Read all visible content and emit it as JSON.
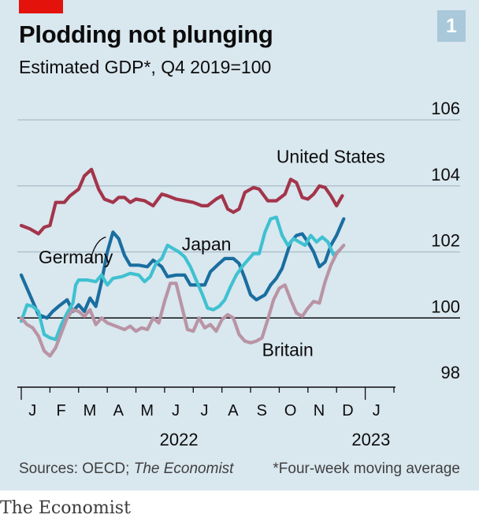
{
  "header": {
    "title": "Plodding not plunging",
    "subtitle": "Estimated GDP*, Q4 2019=100",
    "badge": "1"
  },
  "footer": {
    "source_prefix": "Sources: OECD; ",
    "source_italic": "The Economist",
    "footnote": "*Four-week moving average",
    "brand": "The Economist"
  },
  "colors": {
    "united_states": "#a3354a",
    "germany": "#1a6ea0",
    "japan": "#3fc1d0",
    "britain": "#b994a4",
    "gridline": "#a9bcc8",
    "baseline": "#0c0c0c"
  },
  "chart_data": {
    "type": "line",
    "title": "Plodding not plunging",
    "subtitle": "Estimated GDP*, Q4 2019=100",
    "ylim": [
      98,
      106
    ],
    "yticks": [
      98,
      100,
      102,
      104,
      106
    ],
    "xlim": [
      0,
      13
    ],
    "month_labels": [
      "J",
      "F",
      "M",
      "A",
      "M",
      "J",
      "J",
      "A",
      "S",
      "O",
      "N",
      "D",
      "J"
    ],
    "year_labels": [
      {
        "label": "2022",
        "month_index": 5.5
      },
      {
        "label": "2023",
        "month_index": 12.2
      }
    ],
    "grid": true,
    "series": [
      {
        "name": "United States",
        "color_key": "united_states",
        "label_at": [
          8.9,
          104.7
        ],
        "points": [
          [
            0,
            102.8
          ],
          [
            0.3,
            102.7
          ],
          [
            0.6,
            102.55
          ],
          [
            0.8,
            102.75
          ],
          [
            1.0,
            102.8
          ],
          [
            1.2,
            103.5
          ],
          [
            1.5,
            103.5
          ],
          [
            1.7,
            103.7
          ],
          [
            2.0,
            103.9
          ],
          [
            2.2,
            104.3
          ],
          [
            2.45,
            104.5
          ],
          [
            2.7,
            103.9
          ],
          [
            2.9,
            103.6
          ],
          [
            3.2,
            103.5
          ],
          [
            3.4,
            103.65
          ],
          [
            3.6,
            103.65
          ],
          [
            3.8,
            103.5
          ],
          [
            4.0,
            103.6
          ],
          [
            4.3,
            103.55
          ],
          [
            4.6,
            103.4
          ],
          [
            4.9,
            103.75
          ],
          [
            5.1,
            103.7
          ],
          [
            5.4,
            103.6
          ],
          [
            5.7,
            103.55
          ],
          [
            6.0,
            103.5
          ],
          [
            6.3,
            103.4
          ],
          [
            6.5,
            103.4
          ],
          [
            6.8,
            103.6
          ],
          [
            7.0,
            103.7
          ],
          [
            7.2,
            103.3
          ],
          [
            7.4,
            103.2
          ],
          [
            7.6,
            103.3
          ],
          [
            7.8,
            103.8
          ],
          [
            8.1,
            103.95
          ],
          [
            8.3,
            103.9
          ],
          [
            8.6,
            103.55
          ],
          [
            8.9,
            103.55
          ],
          [
            9.2,
            103.75
          ],
          [
            9.4,
            104.2
          ],
          [
            9.6,
            104.1
          ],
          [
            9.8,
            103.65
          ],
          [
            10.0,
            103.6
          ],
          [
            10.2,
            103.75
          ],
          [
            10.4,
            104.0
          ],
          [
            10.6,
            103.95
          ],
          [
            10.8,
            103.7
          ],
          [
            11.0,
            103.4
          ],
          [
            11.2,
            103.7
          ]
        ]
      },
      {
        "name": "Germany",
        "color_key": "germany",
        "label_at": [
          0.6,
          101.65
        ],
        "points": [
          [
            0,
            101.3
          ],
          [
            0.3,
            100.7
          ],
          [
            0.6,
            100.1
          ],
          [
            0.9,
            100.0
          ],
          [
            1.1,
            100.2
          ],
          [
            1.3,
            100.35
          ],
          [
            1.6,
            100.55
          ],
          [
            1.8,
            100.2
          ],
          [
            2.0,
            100.4
          ],
          [
            2.2,
            100.2
          ],
          [
            2.4,
            100.6
          ],
          [
            2.6,
            100.35
          ],
          [
            2.8,
            101.1
          ],
          [
            3.0,
            102.0
          ],
          [
            3.2,
            102.6
          ],
          [
            3.4,
            102.4
          ],
          [
            3.6,
            101.9
          ],
          [
            3.8,
            101.6
          ],
          [
            4.1,
            101.6
          ],
          [
            4.4,
            101.55
          ],
          [
            4.6,
            101.75
          ],
          [
            4.9,
            101.55
          ],
          [
            5.1,
            101.25
          ],
          [
            5.4,
            101.3
          ],
          [
            5.7,
            101.3
          ],
          [
            5.9,
            101.0
          ],
          [
            6.2,
            101.0
          ],
          [
            6.4,
            101.0
          ],
          [
            6.6,
            101.4
          ],
          [
            6.9,
            101.65
          ],
          [
            7.1,
            101.8
          ],
          [
            7.4,
            101.8
          ],
          [
            7.6,
            101.65
          ],
          [
            7.8,
            101.2
          ],
          [
            8.0,
            100.7
          ],
          [
            8.2,
            100.55
          ],
          [
            8.5,
            100.7
          ],
          [
            8.7,
            101.0
          ],
          [
            8.9,
            101.2
          ],
          [
            9.1,
            101.5
          ],
          [
            9.4,
            102.3
          ],
          [
            9.6,
            102.5
          ],
          [
            9.8,
            102.55
          ],
          [
            10.0,
            102.3
          ],
          [
            10.2,
            102.0
          ],
          [
            10.4,
            101.55
          ],
          [
            10.6,
            101.7
          ],
          [
            10.8,
            102.2
          ],
          [
            11.0,
            102.5
          ],
          [
            11.25,
            103.0
          ]
        ],
        "callout_from": [
          2.4,
          101.65
        ],
        "callout_to": [
          2.95,
          102.45
        ]
      },
      {
        "name": "Japan",
        "color_key": "japan",
        "label_at": [
          5.6,
          102.05
        ],
        "points": [
          [
            0,
            99.9
          ],
          [
            0.2,
            100.4
          ],
          [
            0.4,
            100.35
          ],
          [
            0.6,
            100.2
          ],
          [
            0.8,
            99.5
          ],
          [
            1.0,
            99.4
          ],
          [
            1.2,
            99.35
          ],
          [
            1.4,
            99.8
          ],
          [
            1.6,
            100.15
          ],
          [
            1.8,
            100.45
          ],
          [
            1.9,
            101.0
          ],
          [
            2.0,
            101.15
          ],
          [
            2.3,
            101.15
          ],
          [
            2.6,
            101.1
          ],
          [
            2.8,
            101.3
          ],
          [
            3.0,
            101.0
          ],
          [
            3.2,
            101.2
          ],
          [
            3.5,
            101.25
          ],
          [
            3.8,
            101.35
          ],
          [
            4.1,
            101.3
          ],
          [
            4.3,
            101.1
          ],
          [
            4.5,
            101.25
          ],
          [
            4.7,
            101.65
          ],
          [
            4.9,
            101.8
          ],
          [
            5.1,
            102.2
          ],
          [
            5.3,
            102.1
          ],
          [
            5.5,
            102.0
          ],
          [
            5.7,
            101.85
          ],
          [
            5.9,
            101.55
          ],
          [
            6.1,
            101.15
          ],
          [
            6.3,
            100.75
          ],
          [
            6.5,
            100.3
          ],
          [
            6.7,
            100.25
          ],
          [
            6.9,
            100.35
          ],
          [
            7.1,
            100.55
          ],
          [
            7.3,
            100.95
          ],
          [
            7.5,
            101.3
          ],
          [
            7.7,
            101.55
          ],
          [
            7.9,
            101.75
          ],
          [
            8.1,
            101.95
          ],
          [
            8.3,
            101.95
          ],
          [
            8.5,
            102.6
          ],
          [
            8.7,
            103.0
          ],
          [
            8.9,
            103.05
          ],
          [
            9.1,
            102.5
          ],
          [
            9.3,
            102.2
          ],
          [
            9.5,
            102.4
          ],
          [
            9.7,
            102.3
          ],
          [
            9.9,
            102.2
          ],
          [
            10.1,
            102.5
          ],
          [
            10.3,
            102.3
          ],
          [
            10.5,
            102.45
          ],
          [
            10.7,
            102.3
          ],
          [
            10.9,
            101.9
          ],
          [
            11.1,
            102.05
          ]
        ]
      },
      {
        "name": "Britain",
        "color_key": "britain",
        "label_at": [
          8.4,
          98.85
        ],
        "points": [
          [
            0,
            100.0
          ],
          [
            0.2,
            99.8
          ],
          [
            0.4,
            99.7
          ],
          [
            0.6,
            99.45
          ],
          [
            0.8,
            99.0
          ],
          [
            1.0,
            98.85
          ],
          [
            1.2,
            99.1
          ],
          [
            1.4,
            99.55
          ],
          [
            1.6,
            100.0
          ],
          [
            1.8,
            100.25
          ],
          [
            2.0,
            100.2
          ],
          [
            2.2,
            100.05
          ],
          [
            2.4,
            100.25
          ],
          [
            2.6,
            99.8
          ],
          [
            2.8,
            100.0
          ],
          [
            3.0,
            99.85
          ],
          [
            3.3,
            99.75
          ],
          [
            3.6,
            99.65
          ],
          [
            3.8,
            99.75
          ],
          [
            4.0,
            99.6
          ],
          [
            4.2,
            99.7
          ],
          [
            4.4,
            99.65
          ],
          [
            4.6,
            100.0
          ],
          [
            4.8,
            99.85
          ],
          [
            5.0,
            100.5
          ],
          [
            5.2,
            101.05
          ],
          [
            5.4,
            101.05
          ],
          [
            5.6,
            100.35
          ],
          [
            5.8,
            99.65
          ],
          [
            6.0,
            99.6
          ],
          [
            6.2,
            100.0
          ],
          [
            6.4,
            99.7
          ],
          [
            6.6,
            99.8
          ],
          [
            6.8,
            99.6
          ],
          [
            7.0,
            99.95
          ],
          [
            7.2,
            100.1
          ],
          [
            7.4,
            100.0
          ],
          [
            7.6,
            99.5
          ],
          [
            7.8,
            99.3
          ],
          [
            8.0,
            99.25
          ],
          [
            8.2,
            99.3
          ],
          [
            8.4,
            99.4
          ],
          [
            8.6,
            99.95
          ],
          [
            8.8,
            100.55
          ],
          [
            9.0,
            100.9
          ],
          [
            9.2,
            101.0
          ],
          [
            9.4,
            100.55
          ],
          [
            9.6,
            100.15
          ],
          [
            9.8,
            100.05
          ],
          [
            10.0,
            100.3
          ],
          [
            10.2,
            100.5
          ],
          [
            10.4,
            100.45
          ],
          [
            10.6,
            101.1
          ],
          [
            10.8,
            101.6
          ],
          [
            11.0,
            101.95
          ],
          [
            11.25,
            102.2
          ]
        ]
      }
    ]
  }
}
